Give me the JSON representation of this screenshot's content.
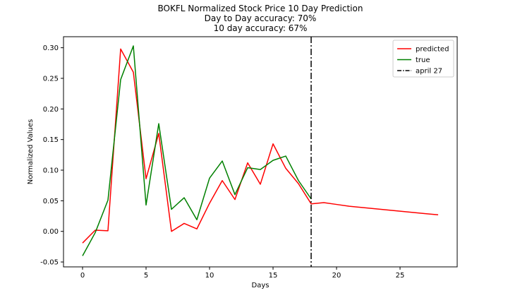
{
  "chart_data": {
    "type": "line",
    "title": [
      "BOKFL Normalized Stock Price 10 Day Prediction",
      "Day to Day accuracy: 70%",
      "10 day accuracy: 67%"
    ],
    "xlabel": "Days",
    "ylabel": "Normalized Values",
    "xlim": [
      -1.5,
      29.5
    ],
    "ylim": [
      -0.058,
      0.318
    ],
    "xticks": [
      0,
      5,
      10,
      15,
      20,
      25
    ],
    "yticks": [
      -0.05,
      0.0,
      0.05,
      0.1,
      0.15,
      0.2,
      0.25,
      0.3
    ],
    "ytick_labels": [
      "-0.05",
      "0.00",
      "0.05",
      "0.10",
      "0.15",
      "0.20",
      "0.25",
      "0.30"
    ],
    "grid": false,
    "legend_position": "top-right",
    "series": [
      {
        "name": "predicted",
        "color": "#ff0000",
        "x": [
          0,
          1,
          2,
          3,
          4,
          5,
          6,
          7,
          8,
          9,
          10,
          11,
          12,
          13,
          14,
          15,
          16,
          17,
          18,
          19,
          20,
          21,
          22,
          23,
          24,
          25,
          26,
          27,
          28
        ],
        "y": [
          -0.019,
          0.002,
          0.001,
          0.298,
          0.26,
          0.086,
          0.16,
          0.0,
          0.013,
          0.004,
          0.046,
          0.083,
          0.052,
          0.112,
          0.077,
          0.143,
          0.103,
          0.078,
          0.045,
          0.047,
          0.044,
          0.041,
          0.039,
          0.037,
          0.035,
          0.033,
          0.031,
          0.029,
          0.027
        ]
      },
      {
        "name": "true",
        "color": "#008000",
        "x": [
          0,
          1,
          2,
          3,
          4,
          5,
          6,
          7,
          8,
          9,
          10,
          11,
          12,
          13,
          14,
          15,
          16,
          17,
          18
        ],
        "y": [
          -0.04,
          -0.002,
          0.051,
          0.248,
          0.303,
          0.043,
          0.176,
          0.036,
          0.055,
          0.019,
          0.087,
          0.115,
          0.06,
          0.104,
          0.101,
          0.116,
          0.123,
          0.083,
          0.053
        ]
      }
    ],
    "vline": {
      "name": "april 27",
      "x": 18,
      "color": "#000000",
      "style": "dashdot"
    }
  }
}
